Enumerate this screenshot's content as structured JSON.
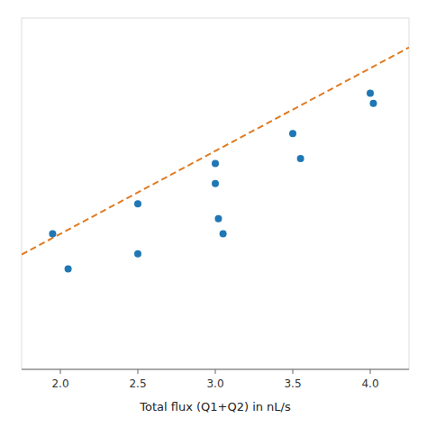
{
  "chart_data": {
    "type": "scatter",
    "xlabel": "Total flux (Q1+Q2) in nL/s",
    "xlim": [
      1.75,
      4.25
    ],
    "ylim": [
      0.35,
      1.05
    ],
    "xticks": [
      {
        "value": 2.0,
        "label": "2.0"
      },
      2.5,
      {
        "value": 3.0,
        "label": "3.0"
      },
      3.5,
      {
        "value": 4.0,
        "label": "4.0"
      }
    ],
    "tick_labels": "x",
    "series": [
      {
        "type": "line",
        "color": "#e07b22",
        "line_style": "dashed",
        "x": [
          1.75,
          4.25
        ],
        "values": [
          0.57875,
          0.99125
        ]
      },
      {
        "type": "scatter",
        "color": "#1f77b4",
        "x": [
          1.95,
          2.05,
          2.5,
          2.5,
          3.0,
          3.0,
          3.02,
          3.05,
          3.5,
          3.55,
          4.0,
          4.02
        ],
        "values": [
          0.62,
          0.55,
          0.68,
          0.58,
          0.76,
          0.72,
          0.65,
          0.62,
          0.82,
          0.77,
          0.9,
          0.88
        ]
      }
    ]
  }
}
